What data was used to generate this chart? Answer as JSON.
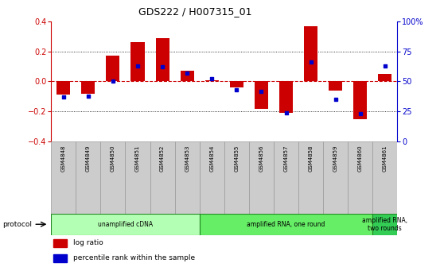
{
  "title": "GDS222 / H007315_01",
  "samples": [
    "GSM4848",
    "GSM4849",
    "GSM4850",
    "GSM4851",
    "GSM4852",
    "GSM4853",
    "GSM4854",
    "GSM4855",
    "GSM4856",
    "GSM4857",
    "GSM4858",
    "GSM4859",
    "GSM4860",
    "GSM4861"
  ],
  "log_ratio": [
    -0.09,
    -0.08,
    0.17,
    0.26,
    0.29,
    0.07,
    0.01,
    -0.04,
    -0.18,
    -0.21,
    0.37,
    -0.06,
    -0.25,
    0.05
  ],
  "percentile": [
    37,
    38,
    50,
    63,
    62,
    57,
    52,
    43,
    42,
    24,
    66,
    35,
    23,
    63
  ],
  "protocol_groups": [
    {
      "label": "unamplified cDNA",
      "start": 0,
      "end": 6,
      "color": "#b3ffb3"
    },
    {
      "label": "amplified RNA, one round",
      "start": 6,
      "end": 13,
      "color": "#66ee66"
    },
    {
      "label": "amplified RNA,\ntwo rounds",
      "start": 13,
      "end": 14,
      "color": "#33cc55"
    }
  ],
  "ylim": [
    -0.4,
    0.4
  ],
  "yticks_left": [
    -0.4,
    -0.2,
    0.0,
    0.2,
    0.4
  ],
  "yticks_right": [
    0,
    25,
    50,
    75,
    100
  ],
  "bar_color": "#cc0000",
  "dot_color": "#0000cc",
  "zero_line_color": "#cc0000",
  "grid_color": "#000000",
  "left_axis_color": "#cc0000",
  "right_axis_color": "#0000cc",
  "background_color": "#ffffff",
  "sample_box_color": "#cccccc",
  "sample_box_edge": "#999999"
}
